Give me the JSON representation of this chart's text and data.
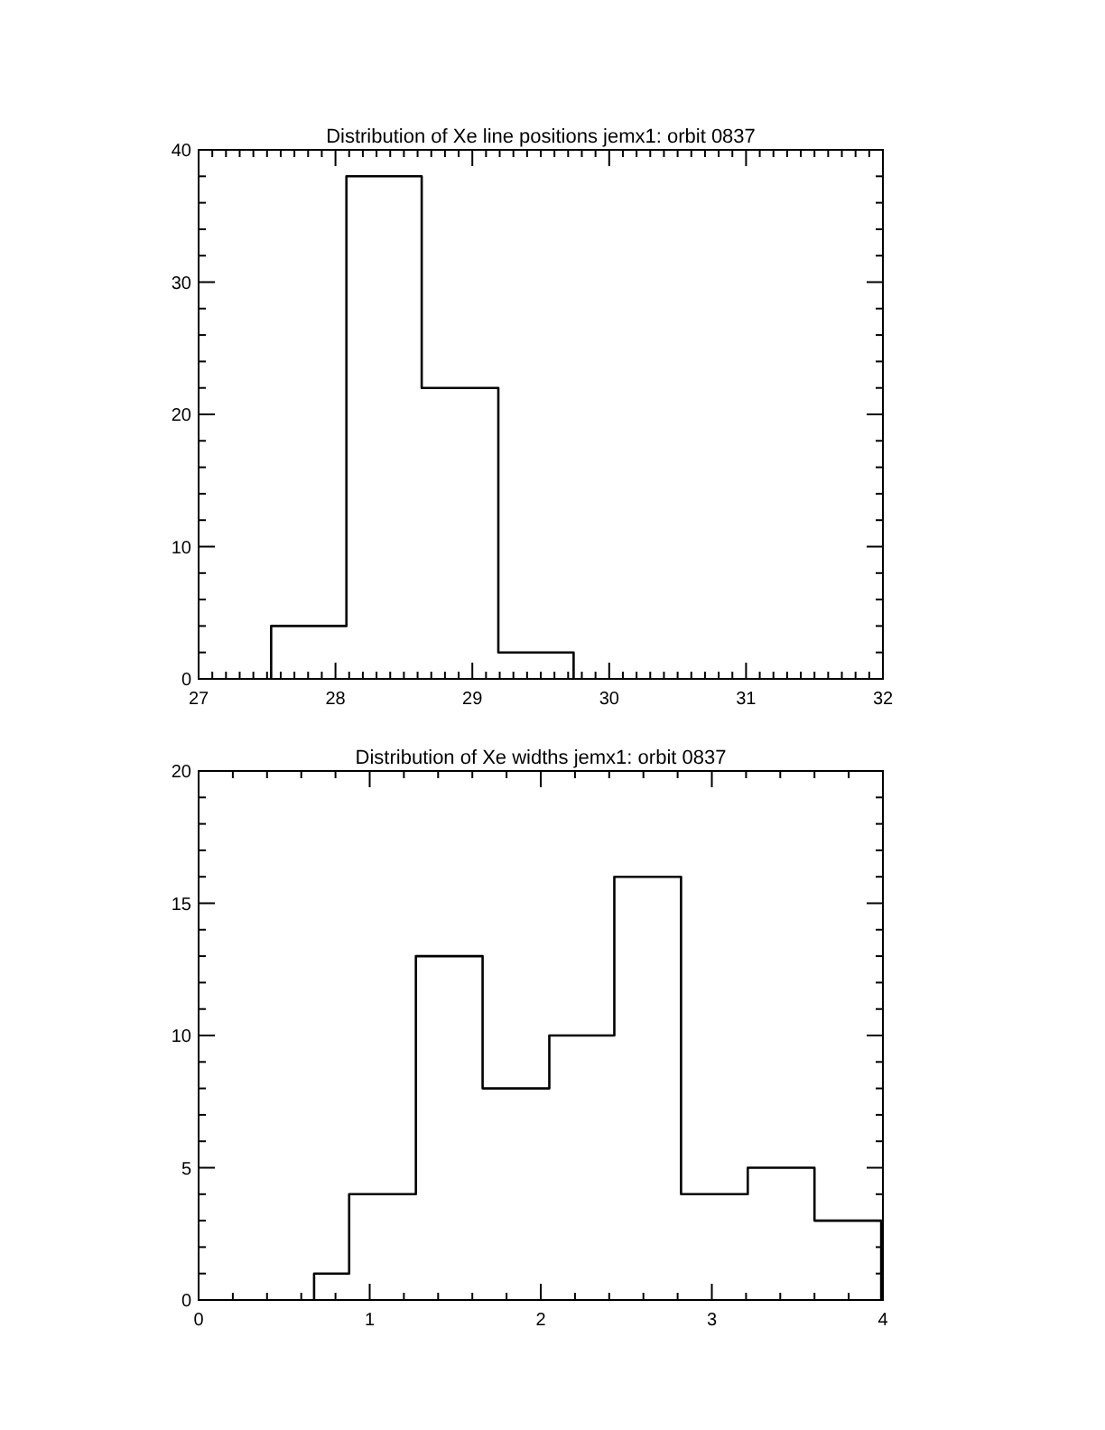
{
  "chart_data": [
    {
      "type": "histogram",
      "title": "Distribution of Xe line positions jemx1: orbit 0837",
      "bins": [
        27.53,
        28.08,
        28.63,
        29.19,
        29.74
      ],
      "values": [
        4,
        38,
        22,
        2
      ],
      "color": "#000000",
      "xlim": [
        27,
        32
      ],
      "ylim": [
        0,
        40
      ],
      "xticks": [
        27,
        {
          "value": 27.1,
          "label": null
        },
        {
          "value": 27.2,
          "label": null
        },
        {
          "value": 27.3,
          "label": null
        },
        {
          "value": 27.4,
          "label": null
        },
        {
          "value": 27.5,
          "label": null
        },
        {
          "value": 27.6,
          "label": null
        },
        {
          "value": 27.7,
          "label": null
        },
        {
          "value": 27.8,
          "label": null
        },
        {
          "value": 27.9,
          "label": null
        },
        28,
        {
          "value": 28.1,
          "label": null
        },
        {
          "value": 28.2,
          "label": null
        },
        {
          "value": 28.3,
          "label": null
        },
        {
          "value": 28.4,
          "label": null
        },
        {
          "value": 28.5,
          "label": null
        },
        {
          "value": 28.6,
          "label": null
        },
        {
          "value": 28.7,
          "label": null
        },
        {
          "value": 28.8,
          "label": null
        },
        {
          "value": 28.9,
          "label": null
        },
        29,
        {
          "value": 29.1,
          "label": null
        },
        {
          "value": 29.2,
          "label": null
        },
        {
          "value": 29.3,
          "label": null
        },
        {
          "value": 29.4,
          "label": null
        },
        {
          "value": 29.5,
          "label": null
        },
        {
          "value": 29.6,
          "label": null
        },
        {
          "value": 29.7,
          "label": null
        },
        {
          "value": 29.8,
          "label": null
        },
        {
          "value": 29.9,
          "label": null
        },
        30,
        {
          "value": 30.1,
          "label": null
        },
        {
          "value": 30.2,
          "label": null
        },
        {
          "value": 30.3,
          "label": null
        },
        {
          "value": 30.4,
          "label": null
        },
        {
          "value": 30.5,
          "label": null
        },
        {
          "value": 30.6,
          "label": null
        },
        {
          "value": 30.7,
          "label": null
        },
        {
          "value": 30.8,
          "label": null
        },
        {
          "value": 30.9,
          "label": null
        },
        31,
        {
          "value": 31.1,
          "label": null
        },
        {
          "value": 31.2,
          "label": null
        },
        {
          "value": 31.3,
          "label": null
        },
        {
          "value": 31.4,
          "label": null
        },
        {
          "value": 31.5,
          "label": null
        },
        {
          "value": 31.6,
          "label": null
        },
        {
          "value": 31.7,
          "label": null
        },
        {
          "value": 31.8,
          "label": null
        },
        {
          "value": 31.9,
          "label": null
        },
        32
      ],
      "yticks": [
        0,
        {
          "value": 2,
          "label": null
        },
        {
          "value": 4,
          "label": null
        },
        {
          "value": 6,
          "label": null
        },
        {
          "value": 8,
          "label": null
        },
        10,
        {
          "value": 12,
          "label": null
        },
        {
          "value": 14,
          "label": null
        },
        {
          "value": 16,
          "label": null
        },
        {
          "value": 18,
          "label": null
        },
        20,
        {
          "value": 22,
          "label": null
        },
        {
          "value": 24,
          "label": null
        },
        {
          "value": 26,
          "label": null
        },
        {
          "value": 28,
          "label": null
        },
        30,
        {
          "value": 32,
          "label": null
        },
        {
          "value": 34,
          "label": null
        },
        {
          "value": 36,
          "label": null
        },
        {
          "value": 38,
          "label": null
        },
        40
      ]
    },
    {
      "type": "histogram",
      "title": "Distribution of Xe widths jemx1: orbit 0837",
      "bins": [
        0.675,
        0.88,
        1.27,
        1.66,
        2.05,
        2.43,
        2.82,
        3.21,
        3.6,
        3.99
      ],
      "values": [
        1,
        4,
        13,
        8,
        10,
        16,
        4,
        5,
        3
      ],
      "color": "#000000",
      "xlim": [
        0,
        4
      ],
      "ylim": [
        0,
        20
      ],
      "xticks": [
        0,
        {
          "value": 0.2,
          "label": null
        },
        {
          "value": 0.4,
          "label": null
        },
        {
          "value": 0.6,
          "label": null
        },
        {
          "value": 0.8,
          "label": null
        },
        1,
        {
          "value": 1.2,
          "label": null
        },
        {
          "value": 1.4,
          "label": null
        },
        {
          "value": 1.6,
          "label": null
        },
        {
          "value": 1.8,
          "label": null
        },
        2,
        {
          "value": 2.2,
          "label": null
        },
        {
          "value": 2.4,
          "label": null
        },
        {
          "value": 2.6,
          "label": null
        },
        {
          "value": 2.8,
          "label": null
        },
        3,
        {
          "value": 3.2,
          "label": null
        },
        {
          "value": 3.4,
          "label": null
        },
        {
          "value": 3.6,
          "label": null
        },
        {
          "value": 3.8,
          "label": null
        },
        4
      ],
      "yticks": [
        0,
        {
          "value": 1,
          "label": null
        },
        {
          "value": 2,
          "label": null
        },
        {
          "value": 3,
          "label": null
        },
        {
          "value": 4,
          "label": null
        },
        5,
        {
          "value": 6,
          "label": null
        },
        {
          "value": 7,
          "label": null
        },
        {
          "value": 8,
          "label": null
        },
        {
          "value": 9,
          "label": null
        },
        10,
        {
          "value": 11,
          "label": null
        },
        {
          "value": 12,
          "label": null
        },
        {
          "value": 13,
          "label": null
        },
        {
          "value": 14,
          "label": null
        },
        15,
        {
          "value": 16,
          "label": null
        },
        {
          "value": 17,
          "label": null
        },
        {
          "value": 18,
          "label": null
        },
        {
          "value": 19,
          "label": null
        },
        20
      ]
    }
  ]
}
